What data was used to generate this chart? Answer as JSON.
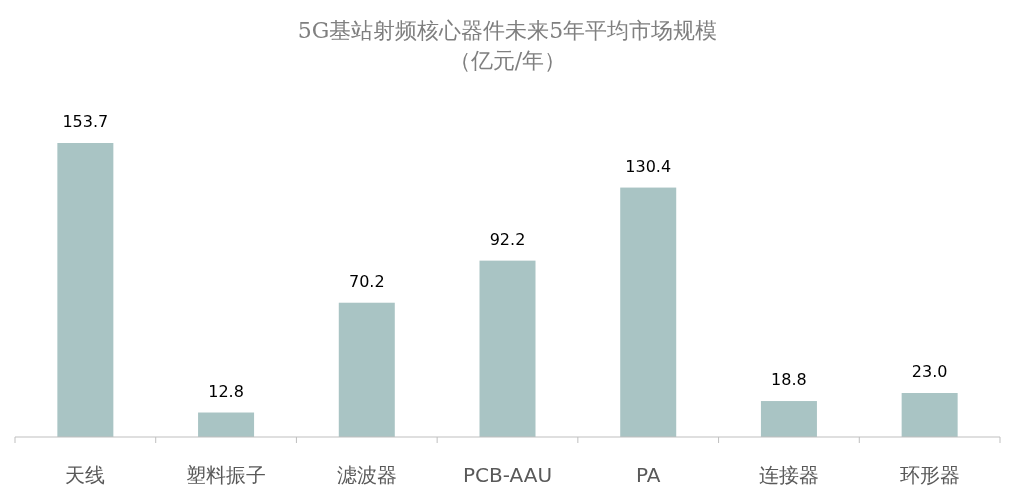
{
  "chart_data": {
    "type": "bar",
    "title": "5G基站射频核心器件未来5年平均市场规模",
    "subtitle": "（亿元/年）",
    "categories": [
      "天线",
      "塑料振子",
      "滤波器",
      "PCB-AAU",
      "PA",
      "连接器",
      "环形器"
    ],
    "values": [
      153.7,
      12.8,
      70.2,
      92.2,
      130.4,
      18.8,
      23.0
    ],
    "value_labels": [
      "153.7",
      "12.8",
      "70.2",
      "92.2",
      "130.4",
      "18.8",
      "23.0"
    ],
    "color": "#a9c4c4"
  }
}
